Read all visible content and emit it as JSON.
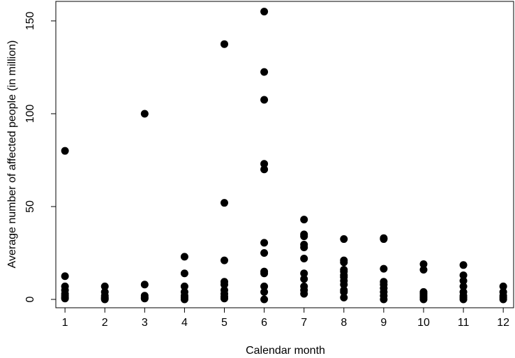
{
  "chart_data": {
    "type": "scatter",
    "x_label": "Calendar month",
    "y_label": "Average number of affected people (in million)",
    "x": [
      1,
      1,
      1,
      1,
      1,
      1,
      1,
      1,
      2,
      2,
      2,
      2,
      2,
      2,
      3,
      3,
      3,
      3,
      3,
      4,
      4,
      4,
      4,
      4,
      4,
      4,
      5,
      5,
      5,
      5,
      5,
      5,
      5,
      5,
      5,
      6,
      6,
      6,
      6,
      6,
      6,
      6,
      6,
      6,
      6,
      6,
      6,
      7,
      7,
      7,
      7,
      7,
      7,
      7,
      7,
      7,
      7,
      7,
      8,
      8,
      8,
      8,
      8,
      8,
      8,
      8,
      8,
      8,
      8,
      8,
      9,
      9,
      9,
      9,
      9,
      9,
      9,
      9,
      9,
      10,
      10,
      10,
      10,
      10,
      10,
      10,
      11,
      11,
      11,
      11,
      11,
      11,
      11,
      11,
      12,
      12,
      12,
      12,
      12
    ],
    "y": [
      80,
      12.5,
      7,
      5,
      3,
      2,
      1,
      0.5,
      7,
      4,
      2,
      1,
      0.5,
      0,
      100,
      8,
      2,
      1,
      0.5,
      23,
      14,
      7,
      4,
      2,
      1,
      0,
      137.5,
      52,
      21,
      9.5,
      8,
      5,
      3,
      1.5,
      0.5,
      155,
      122.5,
      107.5,
      73,
      70,
      30.5,
      25,
      15,
      14,
      7,
      4,
      0,
      43,
      35,
      34,
      29.5,
      28,
      22,
      14,
      11,
      7,
      5,
      3,
      32.5,
      21,
      20,
      16,
      15,
      13,
      12,
      10,
      8,
      5,
      4,
      1,
      33,
      32.5,
      16.5,
      9.5,
      8,
      6,
      4,
      2,
      0,
      19,
      16,
      4,
      3,
      2,
      1,
      0,
      18.5,
      13,
      10,
      7,
      4,
      2,
      1,
      0,
      7,
      4,
      2,
      1,
      0
    ],
    "color": "#000000",
    "xlim": [
      0.77,
      12.26
    ],
    "ylim": [
      -4.5,
      160.5
    ],
    "xticks": [
      1,
      2,
      3,
      4,
      5,
      6,
      7,
      8,
      9,
      10,
      11,
      12
    ],
    "yticks": [
      0,
      50,
      100,
      150
    ],
    "grid": false
  }
}
